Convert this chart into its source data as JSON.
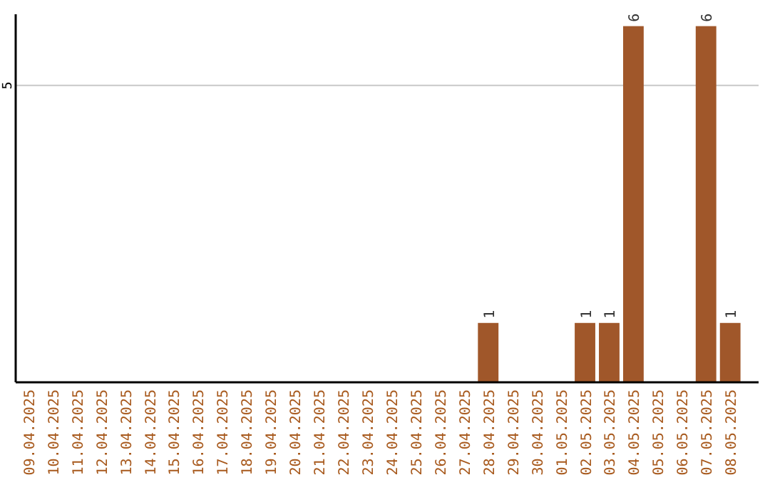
{
  "chart_data": {
    "type": "bar",
    "categories": [
      "09.04.2025",
      "10.04.2025",
      "11.04.2025",
      "12.04.2025",
      "13.04.2025",
      "14.04.2025",
      "15.04.2025",
      "16.04.2025",
      "17.04.2025",
      "18.04.2025",
      "19.04.2025",
      "20.04.2025",
      "21.04.2025",
      "22.04.2025",
      "23.04.2025",
      "24.04.2025",
      "25.04.2025",
      "26.04.2025",
      "27.04.2025",
      "28.04.2025",
      "29.04.2025",
      "30.04.2025",
      "01.05.2025",
      "02.05.2025",
      "03.05.2025",
      "04.05.2025",
      "05.05.2025",
      "06.05.2025",
      "07.05.2025",
      "08.05.2025"
    ],
    "values": [
      null,
      null,
      null,
      null,
      null,
      null,
      null,
      null,
      null,
      null,
      null,
      null,
      null,
      null,
      null,
      null,
      null,
      null,
      null,
      1,
      null,
      null,
      null,
      1,
      1,
      6,
      null,
      null,
      6,
      1
    ],
    "data_labels": true,
    "color": "#a0572a",
    "ylim": [
      0,
      6.2
    ],
    "ref_lines": [
      {
        "axis": "y",
        "value": 5,
        "label": "5",
        "color": "#c8c8c8"
      }
    ]
  }
}
